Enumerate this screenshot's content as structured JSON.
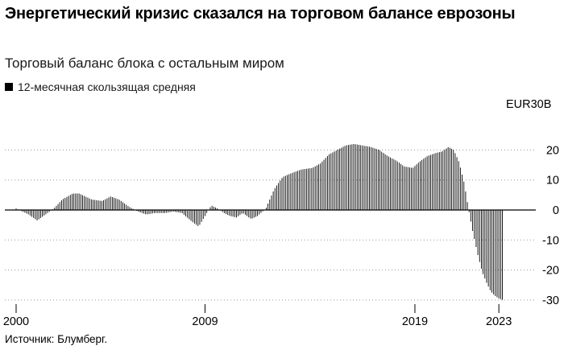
{
  "header": {
    "title": "Энергетический кризис сказался на торговом балансе еврозоны",
    "subtitle": "Торговый баланс блока с остальным миром",
    "legend_label": "12-месячная скользящая средняя"
  },
  "footer": {
    "source": "Источник: Блумберг."
  },
  "chart_data": {
    "type": "bar",
    "title": "Энергетический кризис сказался на торговом балансе еврозоны",
    "subtitle": "Торговый баланс блока с остальным миром",
    "series": [
      {
        "name": "12-месячная скользящая средняя"
      }
    ],
    "unit": "EUR30B",
    "y_ticks": [
      20,
      10,
      0,
      -10,
      -20,
      -30
    ],
    "ylim": [
      -32,
      25
    ],
    "x_ticks": [
      "2000",
      "2009",
      "2019",
      "2023"
    ],
    "x_range": [
      2000.0,
      2023.8
    ],
    "bar_color": "#000000",
    "grid": "horizontal dotted",
    "anchors": [
      [
        2000.0,
        0.5
      ],
      [
        2000.6,
        -1.5
      ],
      [
        2001.0,
        -3.5
      ],
      [
        2001.3,
        -2.0
      ],
      [
        2001.8,
        0.5
      ],
      [
        2002.2,
        3.5
      ],
      [
        2002.7,
        5.5
      ],
      [
        2003.0,
        5.5
      ],
      [
        2003.6,
        3.5
      ],
      [
        2004.1,
        3.0
      ],
      [
        2004.5,
        4.5
      ],
      [
        2004.9,
        3.5
      ],
      [
        2005.4,
        1.0
      ],
      [
        2005.8,
        -0.5
      ],
      [
        2006.2,
        -1.5
      ],
      [
        2006.6,
        -1.0
      ],
      [
        2007.1,
        -1.0
      ],
      [
        2007.5,
        -0.5
      ],
      [
        2007.9,
        -1.0
      ],
      [
        2008.4,
        -4.0
      ],
      [
        2008.7,
        -5.5
      ],
      [
        2009.0,
        -2.0
      ],
      [
        2009.3,
        1.5
      ],
      [
        2009.6,
        0.5
      ],
      [
        2009.9,
        -1.0
      ],
      [
        2010.2,
        -2.0
      ],
      [
        2010.5,
        -2.5
      ],
      [
        2010.8,
        -1.0
      ],
      [
        2011.2,
        -3.0
      ],
      [
        2011.5,
        -2.0
      ],
      [
        2011.9,
        0.5
      ],
      [
        2012.3,
        7.0
      ],
      [
        2012.7,
        11.0
      ],
      [
        2013.2,
        12.5
      ],
      [
        2013.6,
        13.5
      ],
      [
        2014.1,
        14.0
      ],
      [
        2014.5,
        15.5
      ],
      [
        2014.9,
        18.5
      ],
      [
        2015.3,
        20.0
      ],
      [
        2015.7,
        21.5
      ],
      [
        2016.1,
        22.0
      ],
      [
        2016.5,
        21.5
      ],
      [
        2016.9,
        21.0
      ],
      [
        2017.3,
        20.0
      ],
      [
        2017.7,
        18.0
      ],
      [
        2018.1,
        16.5
      ],
      [
        2018.5,
        14.5
      ],
      [
        2018.9,
        14.0
      ],
      [
        2019.2,
        16.0
      ],
      [
        2019.6,
        18.0
      ],
      [
        2020.0,
        19.0
      ],
      [
        2020.3,
        19.5
      ],
      [
        2020.6,
        21.0
      ],
      [
        2020.85,
        20.0
      ],
      [
        2021.1,
        16.0
      ],
      [
        2021.35,
        9.0
      ],
      [
        2021.55,
        0.5
      ],
      [
        2021.75,
        -7.0
      ],
      [
        2022.0,
        -15.0
      ],
      [
        2022.2,
        -20.5
      ],
      [
        2022.4,
        -24.0
      ],
      [
        2022.6,
        -27.0
      ],
      [
        2022.8,
        -28.5
      ],
      [
        2023.0,
        -29.5
      ],
      [
        2023.2,
        -30.0
      ]
    ]
  }
}
